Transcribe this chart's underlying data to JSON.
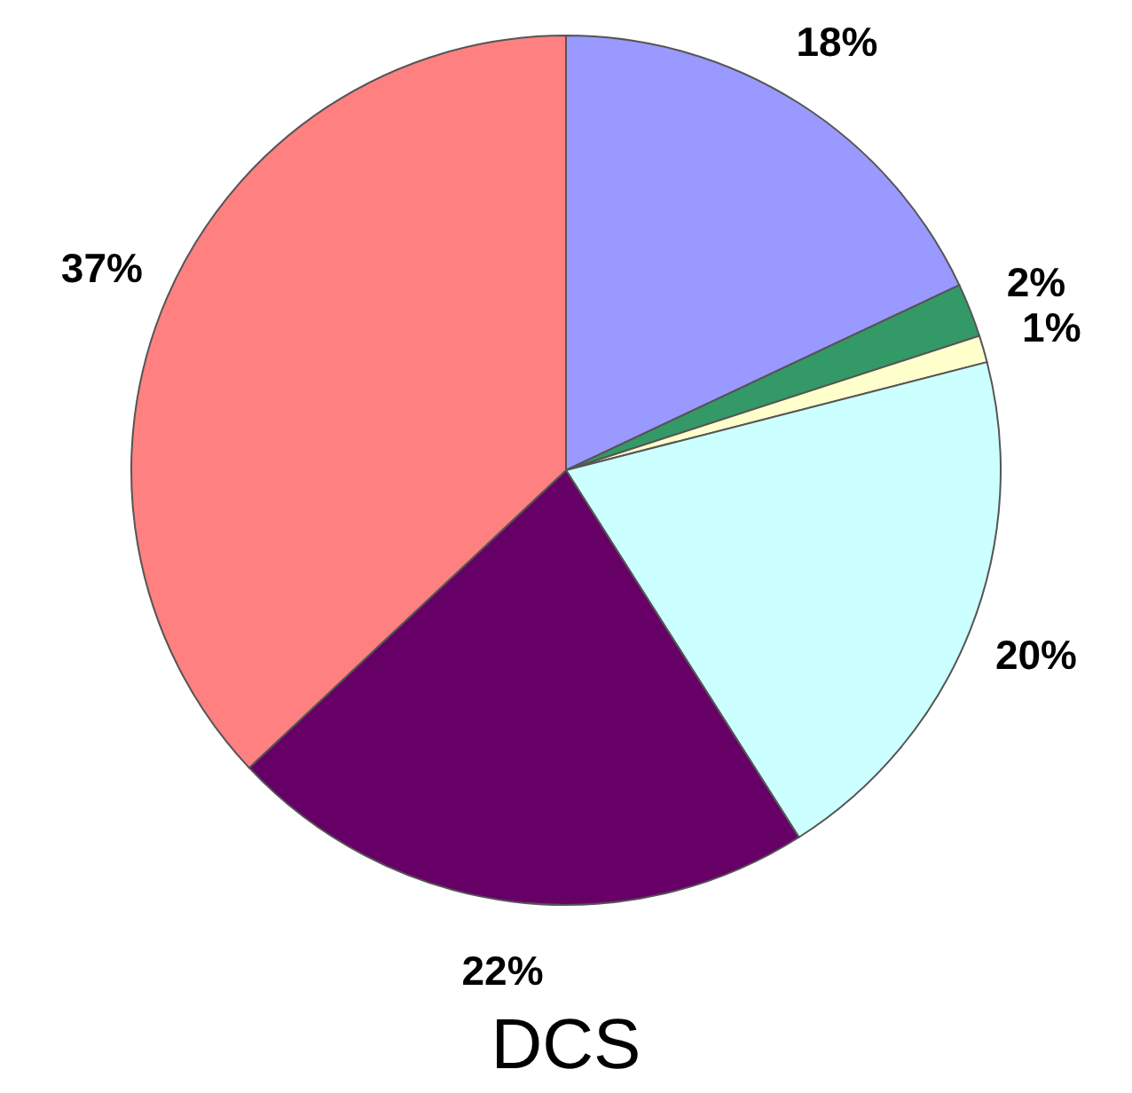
{
  "chart_data": {
    "type": "pie",
    "title": "DCS",
    "categories": [
      null,
      null,
      null,
      null,
      null,
      null
    ],
    "values": [
      18,
      2,
      1,
      20,
      22,
      37
    ],
    "colors": [
      "#9999ff",
      "#339966",
      "#ffffcc",
      "#ccffff",
      "#660066",
      "#ff8080"
    ],
    "value_labels": [
      "18%",
      "2%",
      "1%",
      "20%",
      "22%",
      "37%"
    ]
  }
}
